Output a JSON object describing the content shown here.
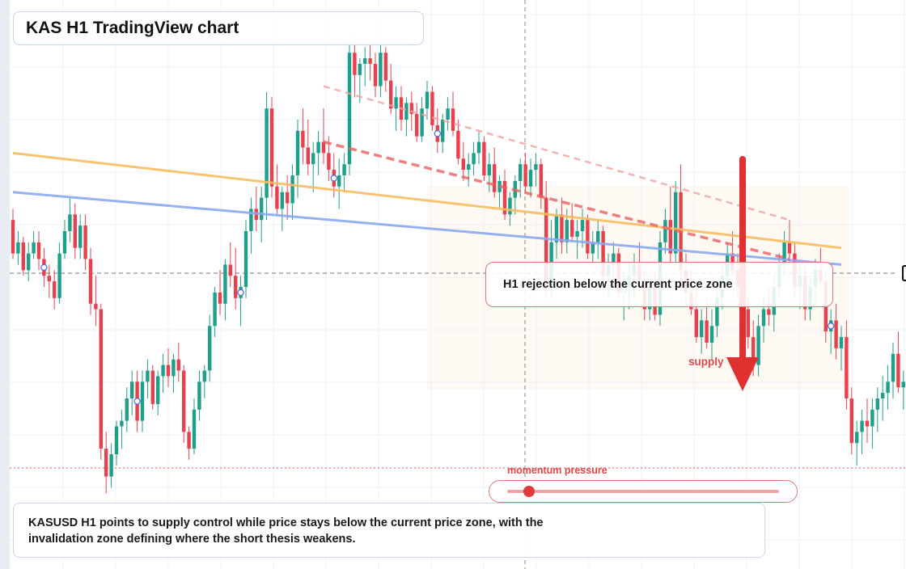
{
  "title": "KAS H1 TradingView chart",
  "callout": "H1 rejection below the current price zone",
  "supply_label": "supply",
  "momentum": {
    "label": "momentum pressure",
    "level": 0.08
  },
  "summary": {
    "line1": "KASUSD H1 points to supply control while price stays below the current price zone, with the",
    "line2": "invalidation zone defining where the short thesis weakens."
  },
  "colors": {
    "up": "#1f9e89",
    "down": "#e8414e",
    "accent_red": "#e03a3a",
    "orange_line": "#f7bd62",
    "blue_line": "#8aa8f0"
  },
  "chart_data": {
    "type": "candlestick",
    "symbol": "KASUSD",
    "timeframe": "H1",
    "title": "KAS H1 TradingView chart",
    "y_range": [
      0,
      100
    ],
    "grid": true,
    "candles_ohlc": [
      [
        62,
        64,
        55,
        56
      ],
      [
        56,
        60,
        54,
        58
      ],
      [
        58,
        59,
        52,
        53
      ],
      [
        53,
        58,
        51,
        56
      ],
      [
        56,
        60,
        55,
        58
      ],
      [
        58,
        60,
        53,
        55
      ],
      [
        55,
        57,
        50,
        52
      ],
      [
        52,
        54,
        48,
        51
      ],
      [
        51,
        53,
        46,
        48
      ],
      [
        48,
        58,
        47,
        56
      ],
      [
        56,
        62,
        55,
        60
      ],
      [
        60,
        66,
        58,
        63
      ],
      [
        63,
        65,
        55,
        57
      ],
      [
        57,
        63,
        55,
        61
      ],
      [
        61,
        63,
        53,
        55
      ],
      [
        55,
        57,
        45,
        47
      ],
      [
        47,
        52,
        43,
        46
      ],
      [
        46,
        47,
        19,
        21
      ],
      [
        21,
        24,
        13,
        16
      ],
      [
        16,
        22,
        14,
        20
      ],
      [
        20,
        26,
        18,
        25
      ],
      [
        25,
        28,
        21,
        26
      ],
      [
        26,
        32,
        24,
        30
      ],
      [
        30,
        35,
        27,
        33
      ],
      [
        33,
        35,
        24,
        26
      ],
      [
        26,
        35,
        24,
        33
      ],
      [
        33,
        37,
        30,
        35
      ],
      [
        35,
        36,
        28,
        29
      ],
      [
        29,
        35,
        27,
        34
      ],
      [
        34,
        38,
        31,
        36
      ],
      [
        36,
        39,
        32,
        34
      ],
      [
        34,
        38,
        31,
        37
      ],
      [
        37,
        40,
        33,
        35
      ],
      [
        35,
        36,
        22,
        24
      ],
      [
        24,
        25,
        19,
        21
      ],
      [
        21,
        30,
        20,
        28
      ],
      [
        28,
        35,
        26,
        33
      ],
      [
        33,
        36,
        30,
        35
      ],
      [
        35,
        45,
        33,
        43
      ],
      [
        43,
        50,
        41,
        49
      ],
      [
        49,
        53,
        45,
        47
      ],
      [
        47,
        55,
        44,
        54
      ],
      [
        54,
        58,
        50,
        52
      ],
      [
        52,
        57,
        46,
        48
      ],
      [
        48,
        52,
        43,
        50
      ],
      [
        50,
        62,
        48,
        60
      ],
      [
        60,
        66,
        56,
        64
      ],
      [
        64,
        68,
        60,
        62
      ],
      [
        62,
        68,
        58,
        66
      ],
      [
        66,
        85,
        62,
        82
      ],
      [
        82,
        84,
        66,
        68
      ],
      [
        68,
        72,
        63,
        64
      ],
      [
        64,
        68,
        60,
        67
      ],
      [
        67,
        70,
        62,
        65
      ],
      [
        65,
        72,
        62,
        70
      ],
      [
        70,
        80,
        66,
        78
      ],
      [
        78,
        82,
        72,
        75
      ],
      [
        75,
        80,
        70,
        72
      ],
      [
        72,
        76,
        67,
        74
      ],
      [
        74,
        78,
        70,
        76
      ],
      [
        76,
        82,
        72,
        74
      ],
      [
        74,
        77,
        69,
        71
      ],
      [
        71,
        74,
        66,
        68
      ],
      [
        68,
        73,
        64,
        70
      ],
      [
        70,
        74,
        67,
        72
      ],
      [
        72,
        94,
        70,
        92
      ],
      [
        92,
        95,
        84,
        88
      ],
      [
        88,
        91,
        83,
        90
      ],
      [
        90,
        93,
        86,
        91
      ],
      [
        91,
        94,
        87,
        90
      ],
      [
        90,
        92,
        84,
        86
      ],
      [
        86,
        94,
        84,
        92
      ],
      [
        92,
        93,
        85,
        87
      ],
      [
        87,
        90,
        81,
        82
      ],
      [
        82,
        86,
        78,
        84
      ],
      [
        84,
        86,
        78,
        80
      ],
      [
        80,
        84,
        77,
        83
      ],
      [
        83,
        85,
        78,
        81
      ],
      [
        81,
        83,
        76,
        77
      ],
      [
        77,
        84,
        76,
        82
      ],
      [
        82,
        87,
        80,
        85
      ],
      [
        85,
        86,
        78,
        79
      ],
      [
        79,
        82,
        74,
        76
      ],
      [
        76,
        81,
        74,
        80
      ],
      [
        80,
        84,
        78,
        82
      ],
      [
        82,
        85,
        77,
        78
      ],
      [
        78,
        80,
        72,
        73
      ],
      [
        73,
        76,
        69,
        71
      ],
      [
        71,
        74,
        68,
        72
      ],
      [
        72,
        76,
        70,
        74
      ],
      [
        74,
        78,
        72,
        76
      ],
      [
        76,
        77,
        69,
        70
      ],
      [
        70,
        74,
        67,
        72
      ],
      [
        72,
        75,
        66,
        67
      ],
      [
        67,
        70,
        64,
        69
      ],
      [
        69,
        71,
        62,
        63
      ],
      [
        63,
        67,
        61,
        66
      ],
      [
        66,
        70,
        63,
        69
      ],
      [
        69,
        73,
        66,
        72
      ],
      [
        72,
        74,
        67,
        68
      ],
      [
        68,
        73,
        66,
        71
      ],
      [
        71,
        74,
        68,
        72
      ],
      [
        72,
        73,
        64,
        66
      ],
      [
        66,
        69,
        48,
        50
      ],
      [
        50,
        62,
        48,
        58
      ],
      [
        58,
        64,
        55,
        63
      ],
      [
        63,
        66,
        56,
        58
      ],
      [
        58,
        64,
        56,
        62
      ],
      [
        62,
        65,
        58,
        59
      ],
      [
        59,
        62,
        55,
        60
      ],
      [
        60,
        64,
        57,
        62
      ],
      [
        62,
        63,
        55,
        56
      ],
      [
        56,
        60,
        54,
        58
      ],
      [
        58,
        62,
        55,
        60
      ],
      [
        60,
        61,
        50,
        52
      ],
      [
        52,
        56,
        48,
        54
      ],
      [
        54,
        58,
        50,
        56
      ],
      [
        56,
        57,
        48,
        49
      ],
      [
        49,
        53,
        44,
        50
      ],
      [
        50,
        54,
        46,
        52
      ],
      [
        52,
        56,
        48,
        54
      ],
      [
        54,
        58,
        49,
        51
      ],
      [
        51,
        53,
        44,
        46
      ],
      [
        46,
        52,
        44,
        50
      ],
      [
        50,
        53,
        44,
        45
      ],
      [
        45,
        60,
        43,
        58
      ],
      [
        58,
        64,
        56,
        62
      ],
      [
        62,
        68,
        54,
        56
      ],
      [
        56,
        69,
        54,
        67
      ],
      [
        67,
        72,
        51,
        53
      ],
      [
        53,
        56,
        47,
        49
      ],
      [
        49,
        53,
        45,
        46
      ],
      [
        46,
        50,
        40,
        41
      ],
      [
        41,
        46,
        38,
        44
      ],
      [
        44,
        48,
        39,
        40
      ],
      [
        40,
        46,
        37,
        43
      ],
      [
        43,
        50,
        41,
        48
      ],
      [
        48,
        54,
        46,
        52
      ],
      [
        52,
        58,
        50,
        56
      ],
      [
        56,
        60,
        52,
        53
      ],
      [
        53,
        56,
        48,
        50
      ],
      [
        50,
        53,
        44,
        46
      ],
      [
        46,
        48,
        39,
        41
      ],
      [
        41,
        44,
        34,
        36
      ],
      [
        36,
        45,
        34,
        43
      ],
      [
        43,
        48,
        40,
        46
      ],
      [
        46,
        50,
        43,
        45
      ],
      [
        45,
        52,
        42,
        50
      ],
      [
        50,
        56,
        48,
        54
      ],
      [
        54,
        60,
        52,
        58
      ],
      [
        58,
        62,
        54,
        56
      ],
      [
        56,
        58,
        48,
        50
      ],
      [
        50,
        54,
        46,
        52
      ],
      [
        52,
        54,
        44,
        46
      ],
      [
        46,
        52,
        44,
        50
      ],
      [
        50,
        55,
        47,
        53
      ],
      [
        53,
        57,
        49,
        51
      ],
      [
        51,
        53,
        40,
        42
      ],
      [
        42,
        46,
        38,
        44
      ],
      [
        44,
        47,
        37,
        39
      ],
      [
        39,
        43,
        35,
        41
      ],
      [
        41,
        44,
        28,
        30
      ],
      [
        30,
        32,
        20,
        22
      ],
      [
        22,
        26,
        18,
        24
      ],
      [
        24,
        28,
        20,
        26
      ],
      [
        26,
        30,
        22,
        25
      ],
      [
        25,
        30,
        21,
        28
      ],
      [
        28,
        32,
        24,
        30
      ],
      [
        30,
        34,
        26,
        31
      ],
      [
        31,
        36,
        28,
        33
      ],
      [
        33,
        40,
        30,
        38
      ],
      [
        38,
        42,
        31,
        32
      ],
      [
        32,
        35,
        28,
        33
      ],
      [
        33,
        36,
        28,
        30
      ]
    ],
    "trendlines": [
      {
        "name": "orange",
        "from": [
          0,
          74
        ],
        "to": [
          160,
          57
        ]
      },
      {
        "name": "blue",
        "from": [
          0,
          67
        ],
        "to": [
          160,
          54
        ]
      },
      {
        "name": "red-dashed",
        "from": [
          60,
          76
        ],
        "to": [
          150,
          55
        ]
      },
      {
        "name": "pink-dashed",
        "from": [
          60,
          86
        ],
        "to": [
          150,
          62
        ]
      }
    ]
  }
}
